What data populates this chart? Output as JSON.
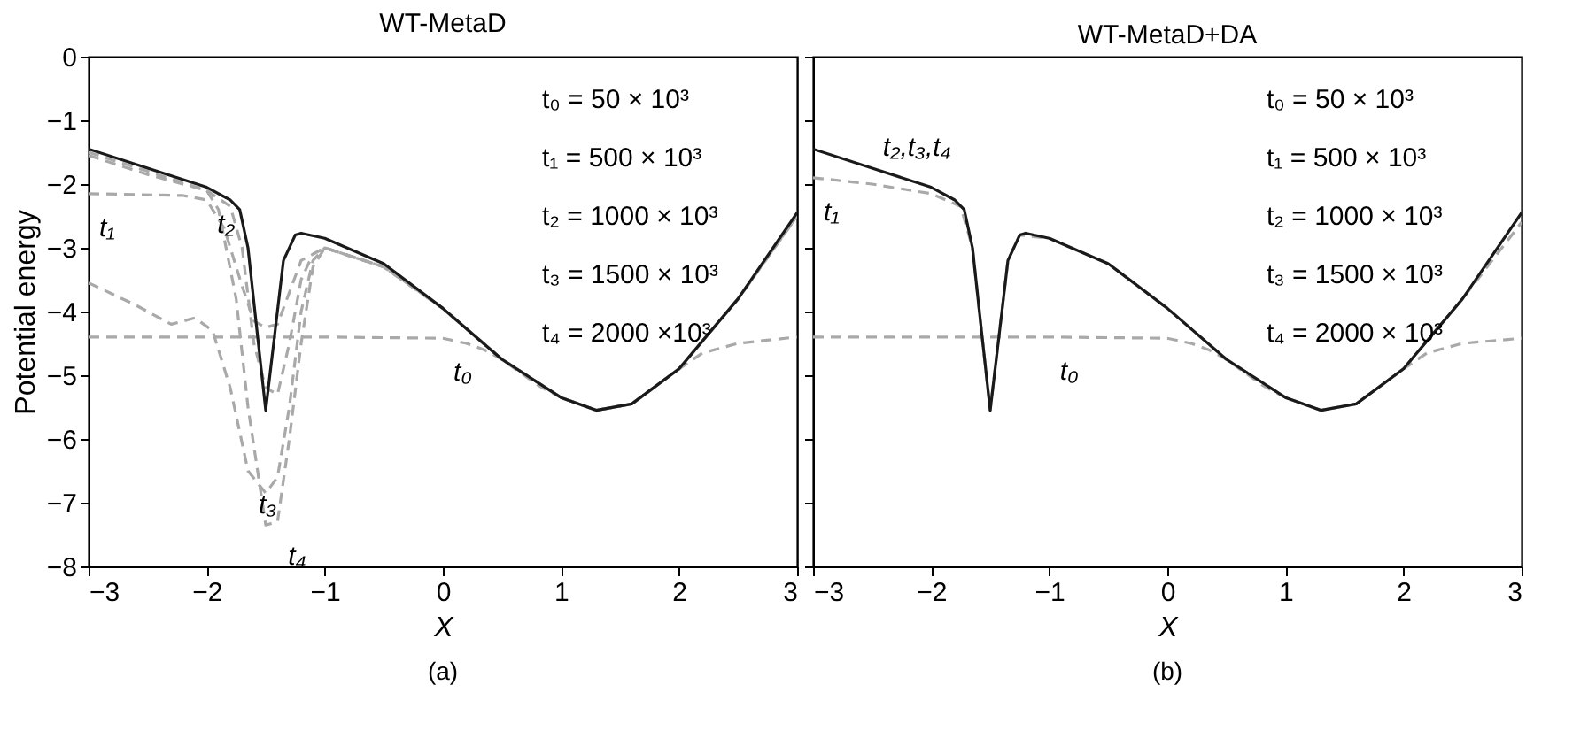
{
  "chart_data": [
    {
      "type": "line",
      "title": "WT-MetaD",
      "xlabel": "X",
      "ylabel": "Potential energy",
      "xlim": [
        -3,
        3
      ],
      "ylim": [
        -8,
        0
      ],
      "xticks": [
        -3,
        -2,
        -1,
        0,
        1,
        2,
        3
      ],
      "yticks": [
        -8,
        -7,
        -6,
        -5,
        -4,
        -3,
        -2,
        -1,
        0
      ],
      "series": [
        {
          "color": "#a9a9a9",
          "line_style": "dashed",
          "x": [
            -3,
            -2,
            -1,
            0,
            0.2,
            0.35,
            0.5,
            0.8,
            1,
            1.3,
            1.6,
            2,
            2.2,
            2.5,
            3
          ],
          "values": [
            -4.4,
            -4.4,
            -4.4,
            -4.42,
            -4.5,
            -4.6,
            -4.75,
            -5.15,
            -5.35,
            -5.55,
            -5.45,
            -4.9,
            -4.65,
            -4.5,
            -4.4
          ]
        },
        {
          "color": "#a9a9a9",
          "line_style": "dashed",
          "x": [
            -3,
            -2.2,
            -2,
            -1.85,
            -1.7,
            -1.6,
            -1.5,
            -1.4,
            -1.3,
            -1.2,
            -1,
            -0.5,
            0,
            0.5,
            1,
            1.3,
            1.6,
            2,
            2.5,
            3
          ],
          "values": [
            -2.15,
            -2.18,
            -2.25,
            -2.7,
            -3.6,
            -4.15,
            -4.25,
            -4.2,
            -3.7,
            -3.2,
            -3,
            -3.3,
            -3.95,
            -4.75,
            -5.35,
            -5.55,
            -5.45,
            -4.9,
            -3.8,
            -2.5
          ]
        },
        {
          "color": "#a9a9a9",
          "line_style": "dashed",
          "x": [
            -3,
            -2.5,
            -2,
            -1.8,
            -1.7,
            -1.6,
            -1.5,
            -1.4,
            -1.3,
            -1.2,
            -1.1,
            -1,
            -0.5,
            0,
            0.5,
            1,
            1.3,
            1.6,
            2,
            2.5,
            3
          ],
          "values": [
            -1.5,
            -1.8,
            -2.1,
            -2.35,
            -3,
            -4.5,
            -5.2,
            -5.3,
            -4.5,
            -3.5,
            -3.1,
            -3,
            -3.3,
            -3.95,
            -4.75,
            -5.35,
            -5.55,
            -5.45,
            -4.9,
            -3.8,
            -2.5
          ]
        },
        {
          "color": "#a9a9a9",
          "line_style": "dashed",
          "x": [
            -3,
            -2.6,
            -2.3,
            -2.1,
            -1.95,
            -1.8,
            -1.65,
            -1.5,
            -1.4,
            -1.3,
            -1.2,
            -1.1,
            -1,
            -0.5,
            0,
            0.5,
            1,
            1.3,
            1.6,
            2,
            2.5,
            3
          ],
          "values": [
            -3.55,
            -3.9,
            -4.2,
            -4.1,
            -4.3,
            -5.2,
            -6.5,
            -6.85,
            -6.6,
            -5.5,
            -4,
            -3.2,
            -3,
            -3.3,
            -3.95,
            -4.75,
            -5.35,
            -5.55,
            -5.45,
            -4.9,
            -3.8,
            -2.5
          ]
        },
        {
          "color": "#a9a9a9",
          "line_style": "dashed",
          "x": [
            -3,
            -2.5,
            -2,
            -1.9,
            -1.75,
            -1.65,
            -1.5,
            -1.4,
            -1.3,
            -1.2,
            -1.1,
            -1,
            -0.5,
            0,
            0.5,
            1,
            1.3,
            1.6,
            2,
            2.5,
            3
          ],
          "values": [
            -1.55,
            -1.85,
            -2.1,
            -2.4,
            -3.8,
            -5.5,
            -7.35,
            -7.3,
            -6,
            -4.5,
            -3.3,
            -3,
            -3.3,
            -3.95,
            -4.75,
            -5.35,
            -5.55,
            -5.45,
            -4.9,
            -3.8,
            -2.5
          ]
        },
        {
          "color": "#1a1a1a",
          "line_style": "solid",
          "x": [
            -3,
            -2.5,
            -2,
            -1.8,
            -1.72,
            -1.65,
            -1.58,
            -1.5,
            -1.42,
            -1.35,
            -1.25,
            -1.2,
            -1,
            -0.5,
            0,
            0.5,
            1,
            1.3,
            1.6,
            2,
            2.5,
            3
          ],
          "values": [
            -1.45,
            -1.75,
            -2.05,
            -2.25,
            -2.4,
            -3,
            -4.2,
            -5.55,
            -4.3,
            -3.2,
            -2.8,
            -2.77,
            -2.85,
            -3.25,
            -3.95,
            -4.75,
            -5.35,
            -5.55,
            -5.45,
            -4.9,
            -3.8,
            -2.45
          ]
        }
      ],
      "annotations": [
        "t₀ = 50 × 10³",
        "t₁ = 500 × 10³",
        "t₂ = 1000 × 10³",
        "t₃ = 1500 × 10³",
        "t₄ = 2000 ×10³",
        {
          "text": "t₀",
          "x": 0,
          "y": -4.42
        },
        {
          "text": "t₁",
          "x": -3,
          "y": -2.15
        },
        {
          "text": "t₂",
          "x": -2,
          "y": -2.1
        },
        {
          "text": "t₃",
          "x": -1.65,
          "y": -6.5
        },
        {
          "text": "t₄",
          "x": -1.4,
          "y": -7.3
        },
        "(a)"
      ]
    },
    {
      "type": "line",
      "title": "WT-MetaD+DA",
      "xlabel": "X",
      "xlim": [
        -3,
        3
      ],
      "ylim": [
        -8,
        0
      ],
      "xticks": [
        -3,
        -2,
        -1,
        0,
        1,
        2,
        3
      ],
      "yticks": [
        -8,
        -7,
        -6,
        -5,
        -4,
        -3,
        -2,
        -1,
        0
      ],
      "tick_labels": "x",
      "series": [
        {
          "color": "#a9a9a9",
          "line_style": "dashed",
          "x": [
            -3,
            -2,
            -1,
            0,
            0.2,
            0.35,
            0.5,
            0.8,
            1,
            1.3,
            1.6,
            2,
            2.2,
            2.5,
            3
          ],
          "values": [
            -4.4,
            -4.4,
            -4.4,
            -4.42,
            -4.5,
            -4.6,
            -4.75,
            -5.15,
            -5.35,
            -5.55,
            -5.45,
            -4.9,
            -4.65,
            -4.5,
            -4.42
          ]
        },
        {
          "color": "#a9a9a9",
          "line_style": "dashed",
          "x": [
            -3,
            -2.5,
            -2,
            -1.75,
            -1.65,
            -1.58,
            -1.5,
            -1.42,
            -1.35,
            -1.25,
            -1,
            -0.5,
            0,
            0.5,
            1,
            1.3,
            1.6,
            2,
            2.5,
            3
          ],
          "values": [
            -1.9,
            -2,
            -2.15,
            -2.35,
            -3,
            -4.2,
            -5.55,
            -4.3,
            -3.2,
            -2.8,
            -2.85,
            -3.25,
            -3.95,
            -4.75,
            -5.35,
            -5.55,
            -5.45,
            -4.9,
            -3.8,
            -2.6
          ]
        },
        {
          "color": "#1a1a1a",
          "line_style": "solid",
          "x": [
            -3,
            -2.5,
            -2,
            -1.8,
            -1.72,
            -1.65,
            -1.58,
            -1.5,
            -1.42,
            -1.35,
            -1.25,
            -1.2,
            -1,
            -0.5,
            0,
            0.5,
            1,
            1.3,
            1.6,
            2,
            2.5,
            3
          ],
          "values": [
            -1.45,
            -1.75,
            -2.05,
            -2.25,
            -2.4,
            -3,
            -4.2,
            -5.55,
            -4.3,
            -3.2,
            -2.8,
            -2.77,
            -2.85,
            -3.25,
            -3.95,
            -4.75,
            -5.35,
            -5.55,
            -5.45,
            -4.9,
            -3.8,
            -2.45
          ]
        }
      ],
      "annotations": [
        "t₀ = 50 × 10³",
        "t₁ = 500 × 10³",
        "t₂ = 1000 × 10³",
        "t₃ = 1500 × 10³",
        "t₄ = 2000 × 10³",
        {
          "text": "t₂,t₃,t₄",
          "x": -2.5,
          "y": -1.75
        },
        {
          "text": "t₁",
          "x": -3,
          "y": -1.9
        },
        {
          "text": "t₀",
          "x": -1,
          "y": -4.4
        },
        "(b)"
      ]
    }
  ]
}
